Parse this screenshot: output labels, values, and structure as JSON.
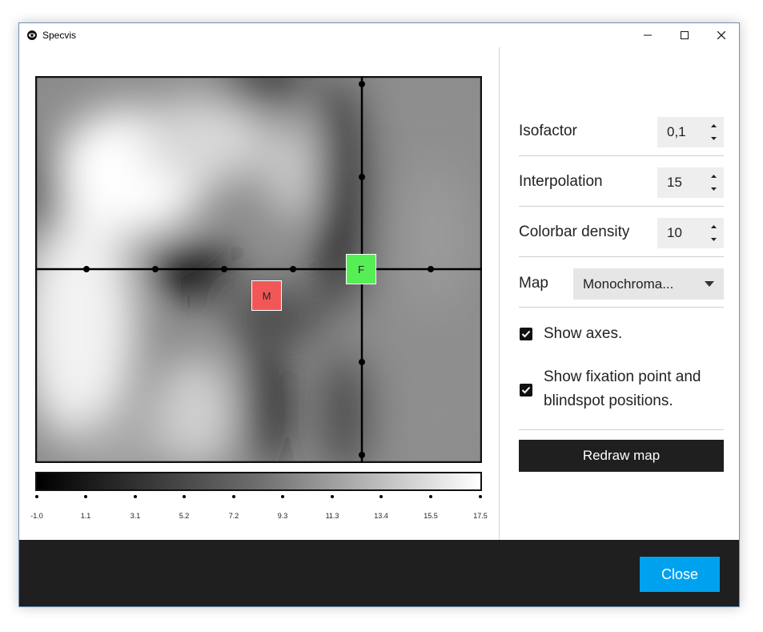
{
  "window": {
    "title": "Specvis",
    "icon": "eye-icon",
    "controls": [
      "minimize-icon",
      "maximize-icon",
      "close-icon"
    ]
  },
  "map": {
    "fixation_marker": "F",
    "blindspot_marker": "M",
    "colorbar_ticks": [
      "-1.0",
      "1.1",
      "3.1",
      "5.2",
      "7.2",
      "9.3",
      "11.3",
      "13.4",
      "15.5",
      "17.5"
    ],
    "colors": {
      "marker_fixation": "#55ee55",
      "marker_blindspot": "#f25757"
    }
  },
  "settings": {
    "isofactor": {
      "label": "Isofactor",
      "value": "0,1"
    },
    "interpolation": {
      "label": "Interpolation",
      "value": "15"
    },
    "colorbar_density": {
      "label": "Colorbar density",
      "value": "10"
    },
    "map": {
      "label": "Map",
      "value": "Monochroma..."
    },
    "show_axes": {
      "label": "Show axes.",
      "checked": true
    },
    "show_fixation": {
      "label_line1": "Show fixation point and",
      "label_line2": "blindspot positions.",
      "checked": true
    },
    "redraw_label": "Redraw map"
  },
  "footer": {
    "close_label": "Close",
    "accent": "#00a2f0"
  }
}
